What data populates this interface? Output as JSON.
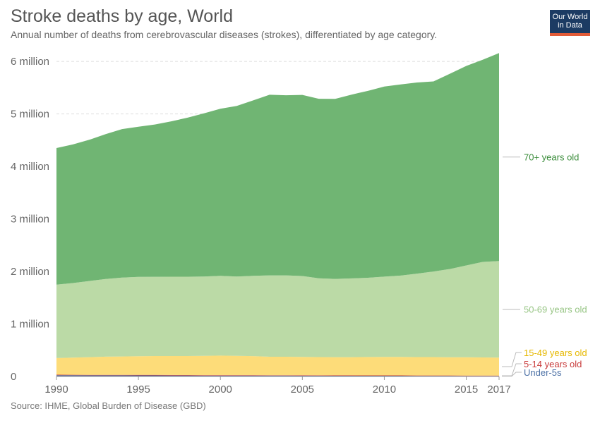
{
  "header": {
    "title": "Stroke deaths by age, World",
    "subtitle": "Annual number of deaths from cerebrovascular diseases (strokes), differentiated by age category.",
    "logo_line1": "Our World",
    "logo_line2": "in Data"
  },
  "footer": {
    "source": "Source: IHME, Global Burden of Disease (GBD)"
  },
  "chart_data": {
    "type": "area",
    "stacked": true,
    "title": "Stroke deaths by age, World",
    "x": [
      1990,
      1991,
      1992,
      1993,
      1994,
      1995,
      1996,
      1997,
      1998,
      1999,
      2000,
      2001,
      2002,
      2003,
      2004,
      2005,
      2006,
      2007,
      2008,
      2009,
      2010,
      2011,
      2012,
      2013,
      2014,
      2015,
      2016,
      2017
    ],
    "xticks": [
      1990,
      1995,
      2000,
      2005,
      2010,
      2015,
      2017
    ],
    "yticks": [
      {
        "value": 0,
        "label": "0"
      },
      {
        "value": 1000000,
        "label": "1 million"
      },
      {
        "value": 2000000,
        "label": "2 million"
      },
      {
        "value": 3000000,
        "label": "3 million"
      },
      {
        "value": 4000000,
        "label": "4 million"
      },
      {
        "value": 5000000,
        "label": "5 million"
      },
      {
        "value": 6000000,
        "label": "6 million"
      }
    ],
    "ylim": [
      0,
      6150000
    ],
    "grid": true,
    "legend": "right, labels at series ends",
    "series": [
      {
        "name": "Under-5s",
        "color": "#4a6fa5",
        "values": [
          24000,
          23000,
          22000,
          21000,
          21000,
          20000,
          20000,
          19000,
          19000,
          18000,
          18000,
          17000,
          17000,
          16000,
          16000,
          15000,
          15000,
          14000,
          14000,
          13000,
          13000,
          13000,
          12000,
          12000,
          12000,
          11000,
          11000,
          11000
        ]
      },
      {
        "name": "5-14 years old",
        "color": "#c83a3a",
        "values": [
          9000,
          9000,
          9000,
          9000,
          9000,
          9000,
          9000,
          9000,
          8000,
          8000,
          8000,
          8000,
          8000,
          8000,
          8000,
          8000,
          7000,
          7000,
          7000,
          7000,
          7000,
          7000,
          7000,
          7000,
          7000,
          7000,
          6000,
          6000
        ]
      },
      {
        "name": "15-49 years old",
        "color": "#fddc79",
        "label_color": "#e6b800",
        "values": [
          317000,
          327000,
          337000,
          347000,
          352000,
          357000,
          360000,
          362000,
          363000,
          367000,
          372000,
          368000,
          363000,
          352000,
          352000,
          350000,
          347000,
          347000,
          347000,
          350000,
          352000,
          352000,
          350000,
          350000,
          347000,
          347000,
          345000,
          343000
        ]
      },
      {
        "name": "50-69 years old",
        "color": "#bbdaa6",
        "label_color": "#97c584",
        "values": [
          1400000,
          1420000,
          1450000,
          1480000,
          1500000,
          1510000,
          1510000,
          1510000,
          1510000,
          1510000,
          1520000,
          1510000,
          1530000,
          1550000,
          1550000,
          1540000,
          1500000,
          1490000,
          1500000,
          1510000,
          1530000,
          1550000,
          1590000,
          1630000,
          1680000,
          1750000,
          1820000,
          1840000
        ]
      },
      {
        "name": "70+ years old",
        "color": "#70b573",
        "label_color": "#3a8c3a",
        "values": [
          2600000,
          2640000,
          2690000,
          2760000,
          2830000,
          2860000,
          2900000,
          2960000,
          3030000,
          3110000,
          3180000,
          3250000,
          3340000,
          3440000,
          3430000,
          3450000,
          3420000,
          3430000,
          3500000,
          3560000,
          3620000,
          3640000,
          3640000,
          3620000,
          3720000,
          3800000,
          3850000,
          3960000
        ]
      }
    ]
  }
}
